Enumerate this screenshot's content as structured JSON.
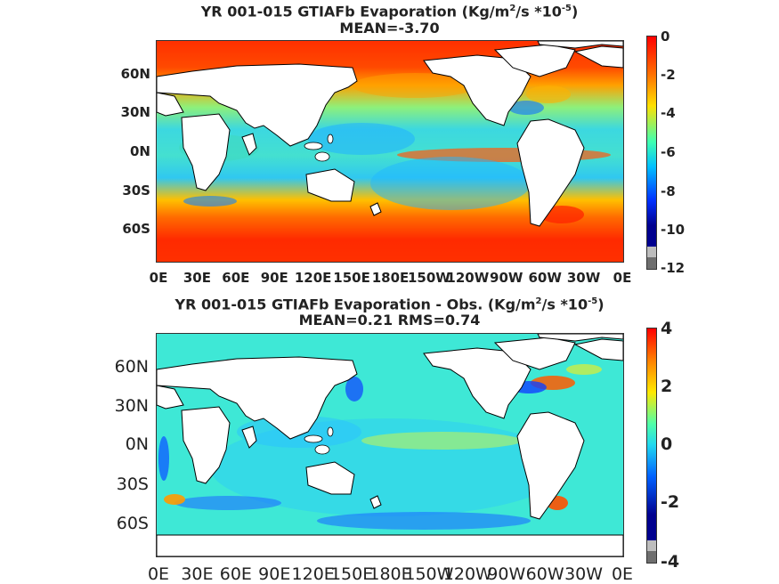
{
  "panel_top": {
    "title_line1_pre": "YR 001-015 GTIAFb  Evaporation (Kg/m",
    "title_line1_sup1": "2",
    "title_line1_mid": "/s *10",
    "title_line1_sup2": "-5",
    "title_line1_post": ")",
    "title_line2": "MEAN=-3.70",
    "lat_labels": [
      "60N",
      "30N",
      "0N",
      "30S",
      "60S"
    ],
    "lon_labels": [
      "0E",
      "30E",
      "60E",
      "90E",
      "120E",
      "150E",
      "180E",
      "150W",
      "120W",
      "90W",
      "60W",
      "30W",
      "0E"
    ],
    "colorbar_ticks": [
      "0",
      "-2",
      "-4",
      "-6",
      "-8",
      "-10",
      "-12"
    ]
  },
  "panel_bottom": {
    "title_line1_pre": "YR 001-015 GTIAFb Evaporation - Obs. (Kg/m",
    "title_line1_sup1": "2",
    "title_line1_mid": "/s *10",
    "title_line1_sup2": "-5",
    "title_line1_post": ")",
    "title_line2": "MEAN=0.21   RMS=0.74",
    "lat_labels": [
      "60N",
      "30N",
      "0N",
      "30S",
      "60S"
    ],
    "lon_labels": [
      "0E",
      "30E",
      "60E",
      "90E",
      "120E",
      "150E",
      "180E",
      "150W",
      "120W",
      "90W",
      "60W",
      "30W",
      "0E"
    ],
    "colorbar_ticks": [
      "4",
      "2",
      "0",
      "-2",
      "-4"
    ]
  },
  "colors": {
    "jet_dark_red": "#8b0000",
    "jet_red": "#ff3a00",
    "jet_orange": "#ff9a00",
    "jet_yellow": "#e8ef2a",
    "jet_cyan": "#35e8d8",
    "jet_light_blue": "#26b4ff",
    "jet_blue": "#1050ff",
    "jet_dark_blue": "#00008f",
    "land": "#ffffff",
    "coast": "#000000",
    "gray": "#bdbdbd",
    "dark_gray": "#6e6e6e"
  }
}
